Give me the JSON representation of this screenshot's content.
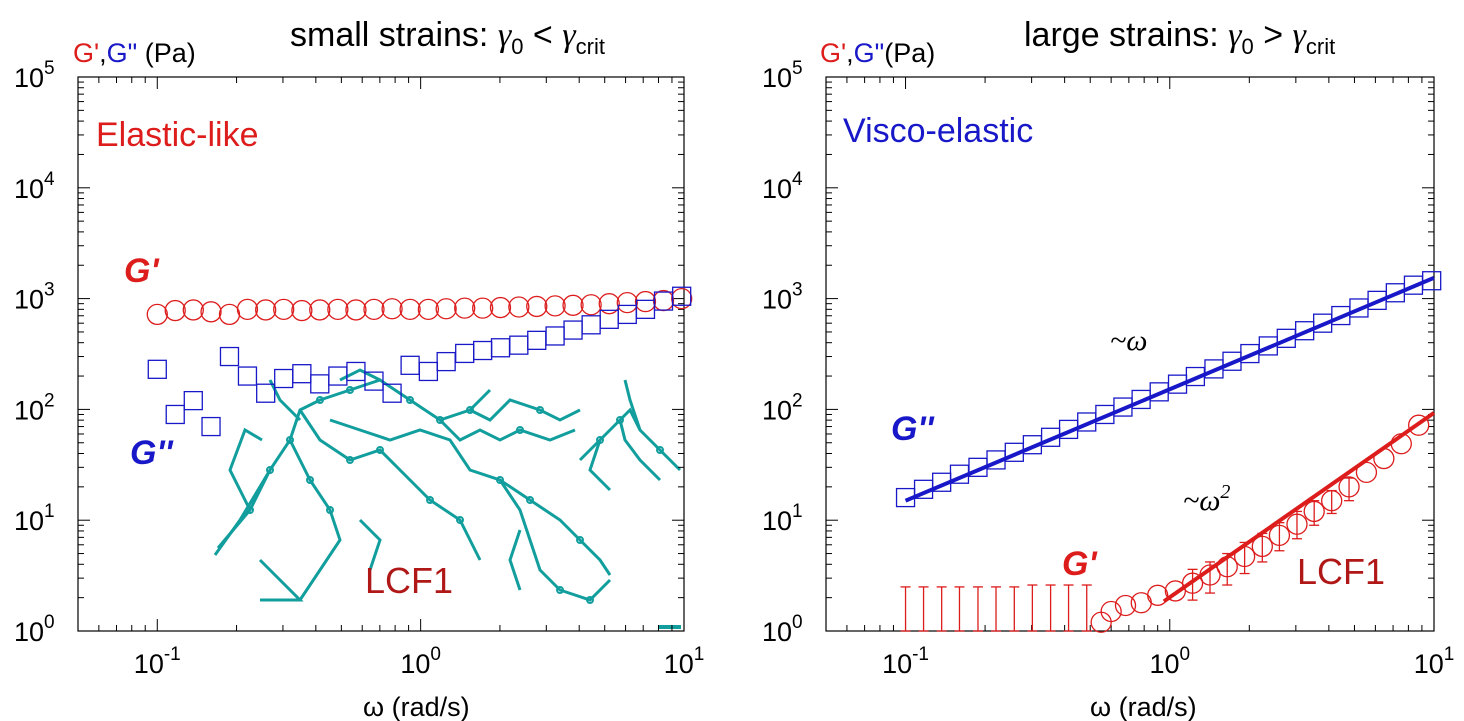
{
  "colors": {
    "red": "#dd1c1c",
    "blue": "#1818c8",
    "teal": "#139e9e",
    "darkred": "#b01818",
    "axis": "#000000"
  },
  "chart_data": [
    {
      "type": "scatter",
      "title": "small strains: γ0 < γcrit",
      "title_parts": {
        "prefix": "small strains: ",
        "g1": "γ",
        "s1": "0",
        "op": " < ",
        "g2": "γ",
        "s2": "crit"
      },
      "ylabel_parts": {
        "g1": "G'",
        "comma": ",",
        "g2": "G\"",
        "unit": " (Pa)"
      },
      "xlabel": "ω (rad/s)",
      "xscale": "log",
      "yscale": "log",
      "xlim": [
        0.05,
        10
      ],
      "ylim": [
        1,
        100000
      ],
      "x_ticks": [
        {
          "b": "10",
          "e": "-1",
          "v": 0.1
        },
        {
          "b": "10",
          "e": "0",
          "v": 1
        },
        {
          "b": "10",
          "e": "1",
          "v": 10
        }
      ],
      "y_ticks": [
        {
          "b": "10",
          "e": "0",
          "v": 1
        },
        {
          "b": "10",
          "e": "1",
          "v": 10
        },
        {
          "b": "10",
          "e": "2",
          "v": 100
        },
        {
          "b": "10",
          "e": "3",
          "v": 1000
        },
        {
          "b": "10",
          "e": "4",
          "v": 10000
        },
        {
          "b": "10",
          "e": "5",
          "v": 100000
        }
      ],
      "annotations": {
        "regime": "Elastic-like",
        "gp": "G'",
        "gpp": "G''",
        "sample": "LCF1"
      },
      "series": [
        {
          "name": "G'",
          "marker": "circle",
          "color": "#dd1c1c",
          "x": [
            0.1,
            0.117,
            0.137,
            0.16,
            0.188,
            0.22,
            0.258,
            0.302,
            0.354,
            0.414,
            0.485,
            0.568,
            0.665,
            0.779,
            0.912,
            1.07,
            1.25,
            1.47,
            1.72,
            2.01,
            2.36,
            2.76,
            3.24,
            3.79,
            4.44,
            5.2,
            6.09,
            7.14,
            8.36,
            9.8
          ],
          "y": [
            720,
            780,
            790,
            760,
            720,
            800,
            790,
            800,
            780,
            790,
            800,
            790,
            800,
            810,
            800,
            800,
            810,
            820,
            820,
            830,
            840,
            850,
            860,
            870,
            880,
            900,
            920,
            940,
            960,
            1000
          ]
        },
        {
          "name": "G''",
          "marker": "square",
          "color": "#1818c8",
          "x": [
            0.1,
            0.117,
            0.137,
            0.16,
            0.188,
            0.22,
            0.258,
            0.302,
            0.354,
            0.414,
            0.485,
            0.568,
            0.665,
            0.779,
            0.912,
            1.07,
            1.25,
            1.47,
            1.72,
            2.01,
            2.36,
            2.76,
            3.24,
            3.79,
            4.44,
            5.2,
            6.09,
            7.14,
            8.36,
            9.8
          ],
          "y": [
            230,
            90,
            120,
            70,
            300,
            200,
            140,
            190,
            210,
            170,
            200,
            220,
            180,
            140,
            250,
            220,
            270,
            320,
            340,
            360,
            380,
            420,
            460,
            520,
            580,
            650,
            720,
            800,
            950,
            1050
          ]
        }
      ]
    },
    {
      "type": "scatter",
      "title": "large strains: γ0 > γcrit",
      "title_parts": {
        "prefix": "large strains: ",
        "g1": "γ",
        "s1": "0",
        "op": " > ",
        "g2": "γ",
        "s2": "crit"
      },
      "ylabel_parts": {
        "g1": "G'",
        "comma": ",",
        "g2": "G\"",
        "unit": "(Pa)"
      },
      "xlabel": "ω (rad/s)",
      "xscale": "log",
      "yscale": "log",
      "xlim": [
        0.05,
        10
      ],
      "ylim": [
        1,
        100000
      ],
      "x_ticks": [
        {
          "b": "10",
          "e": "-1",
          "v": 0.1
        },
        {
          "b": "10",
          "e": "0",
          "v": 1
        },
        {
          "b": "10",
          "e": "1",
          "v": 10
        }
      ],
      "y_ticks": [
        {
          "b": "10",
          "e": "0",
          "v": 1
        },
        {
          "b": "10",
          "e": "1",
          "v": 10
        },
        {
          "b": "10",
          "e": "2",
          "v": 100
        },
        {
          "b": "10",
          "e": "3",
          "v": 1000
        },
        {
          "b": "10",
          "e": "4",
          "v": 10000
        },
        {
          "b": "10",
          "e": "5",
          "v": 100000
        }
      ],
      "annotations": {
        "regime": "Visco-elastic",
        "gp": "G'",
        "gpp": "G''",
        "sample": "LCF1",
        "slope1": "~ω",
        "slope2_base": "~ω",
        "slope2_exp": "2"
      },
      "series": [
        {
          "name": "G''",
          "marker": "square",
          "color": "#1818c8",
          "x": [
            0.1,
            0.117,
            0.137,
            0.16,
            0.188,
            0.22,
            0.258,
            0.302,
            0.354,
            0.414,
            0.485,
            0.568,
            0.665,
            0.779,
            0.912,
            1.07,
            1.25,
            1.47,
            1.72,
            2.01,
            2.36,
            2.76,
            3.24,
            3.79,
            4.44,
            5.2,
            6.09,
            7.14,
            8.36,
            9.8
          ],
          "y": [
            16,
            19,
            22,
            26,
            30,
            35,
            41,
            48,
            56,
            66,
            77,
            90,
            105,
            123,
            144,
            169,
            198,
            232,
            272,
            319,
            374,
            438,
            513,
            600,
            703,
            823,
            964,
            1129,
            1322,
            1450
          ]
        },
        {
          "name": "G'",
          "marker": "circle",
          "color": "#dd1c1c",
          "x": [
            0.55,
            0.6,
            0.68,
            0.78,
            0.9,
            1.05,
            1.22,
            1.42,
            1.65,
            1.92,
            2.24,
            2.6,
            3.03,
            3.52,
            4.1,
            4.77,
            5.55,
            6.46,
            7.52,
            8.75
          ],
          "y": [
            1.2,
            1.5,
            1.7,
            1.8,
            2.1,
            2.3,
            2.7,
            3.2,
            3.8,
            4.7,
            5.8,
            7.3,
            9.2,
            12,
            15,
            20,
            27,
            36,
            49,
            72
          ]
        },
        {
          "name": "G' error bars",
          "marker": "errorbar",
          "color": "#dd1c1c",
          "x": [
            0.1,
            0.117,
            0.137,
            0.16,
            0.188,
            0.22,
            0.258,
            0.302,
            0.354,
            0.414,
            0.485,
            1.22,
            1.42,
            1.65,
            1.92,
            2.24,
            2.6,
            3.03,
            3.52,
            4.1,
            4.77
          ],
          "y_low": [
            1,
            1,
            1,
            1,
            1,
            1,
            1,
            1,
            1,
            1,
            1,
            1.9,
            2.2,
            2.6,
            3.3,
            4.2,
            5.3,
            6.8,
            9,
            11.5,
            15
          ],
          "y_high": [
            2.5,
            2.5,
            2.5,
            2.5,
            2.5,
            2.5,
            2.5,
            2.6,
            2.6,
            2.6,
            2.6,
            3.6,
            4.2,
            5,
            6.3,
            7.6,
            9.5,
            12,
            15,
            18.5,
            24
          ]
        }
      ],
      "fits": [
        {
          "label": "~ω",
          "color": "#1818c8",
          "x": [
            0.1,
            10
          ],
          "y": [
            15,
            1540
          ]
        },
        {
          "label": "~ω2",
          "color": "#dd1c1c",
          "x": [
            0.95,
            10
          ],
          "y": [
            1.85,
            93
          ]
        }
      ]
    }
  ]
}
